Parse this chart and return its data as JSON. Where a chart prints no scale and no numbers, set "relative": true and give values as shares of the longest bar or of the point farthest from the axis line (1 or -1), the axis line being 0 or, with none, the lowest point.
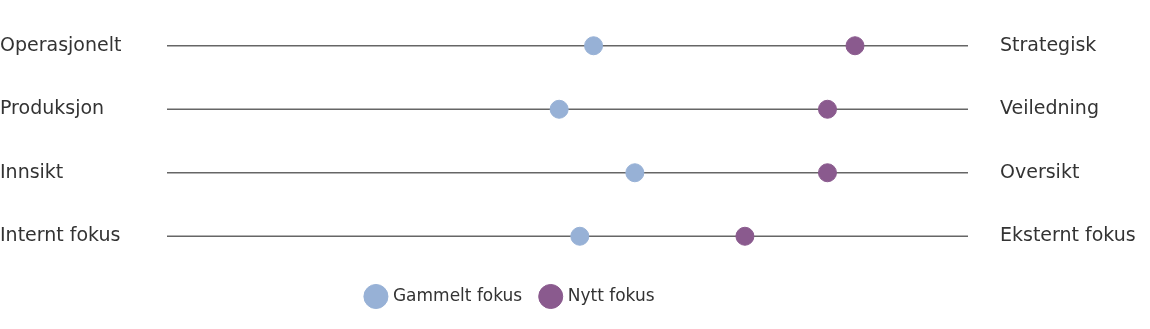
{
  "chart_data": {
    "type": "scatter",
    "orientation": "horizontal",
    "relative": true,
    "categories": [
      "Operasjonelt",
      "Produksjon",
      "Innsikt",
      "Internt fokus"
    ],
    "y2_categories": [
      "Strategisk",
      "Veiledning",
      "Oversikt",
      "Eksternt fokus"
    ],
    "series": [
      {
        "name": "Gammelt fokus",
        "color": "#97b1d6",
        "values": [
          0.62,
          0.57,
          0.68,
          0.6
        ]
      },
      {
        "name": "Nytt fokus",
        "color": "#8a5a8e",
        "values": [
          1,
          0.96,
          0.96,
          0.84
        ]
      }
    ],
    "grid": "y",
    "legend": "bottom",
    "marker": "circle"
  }
}
